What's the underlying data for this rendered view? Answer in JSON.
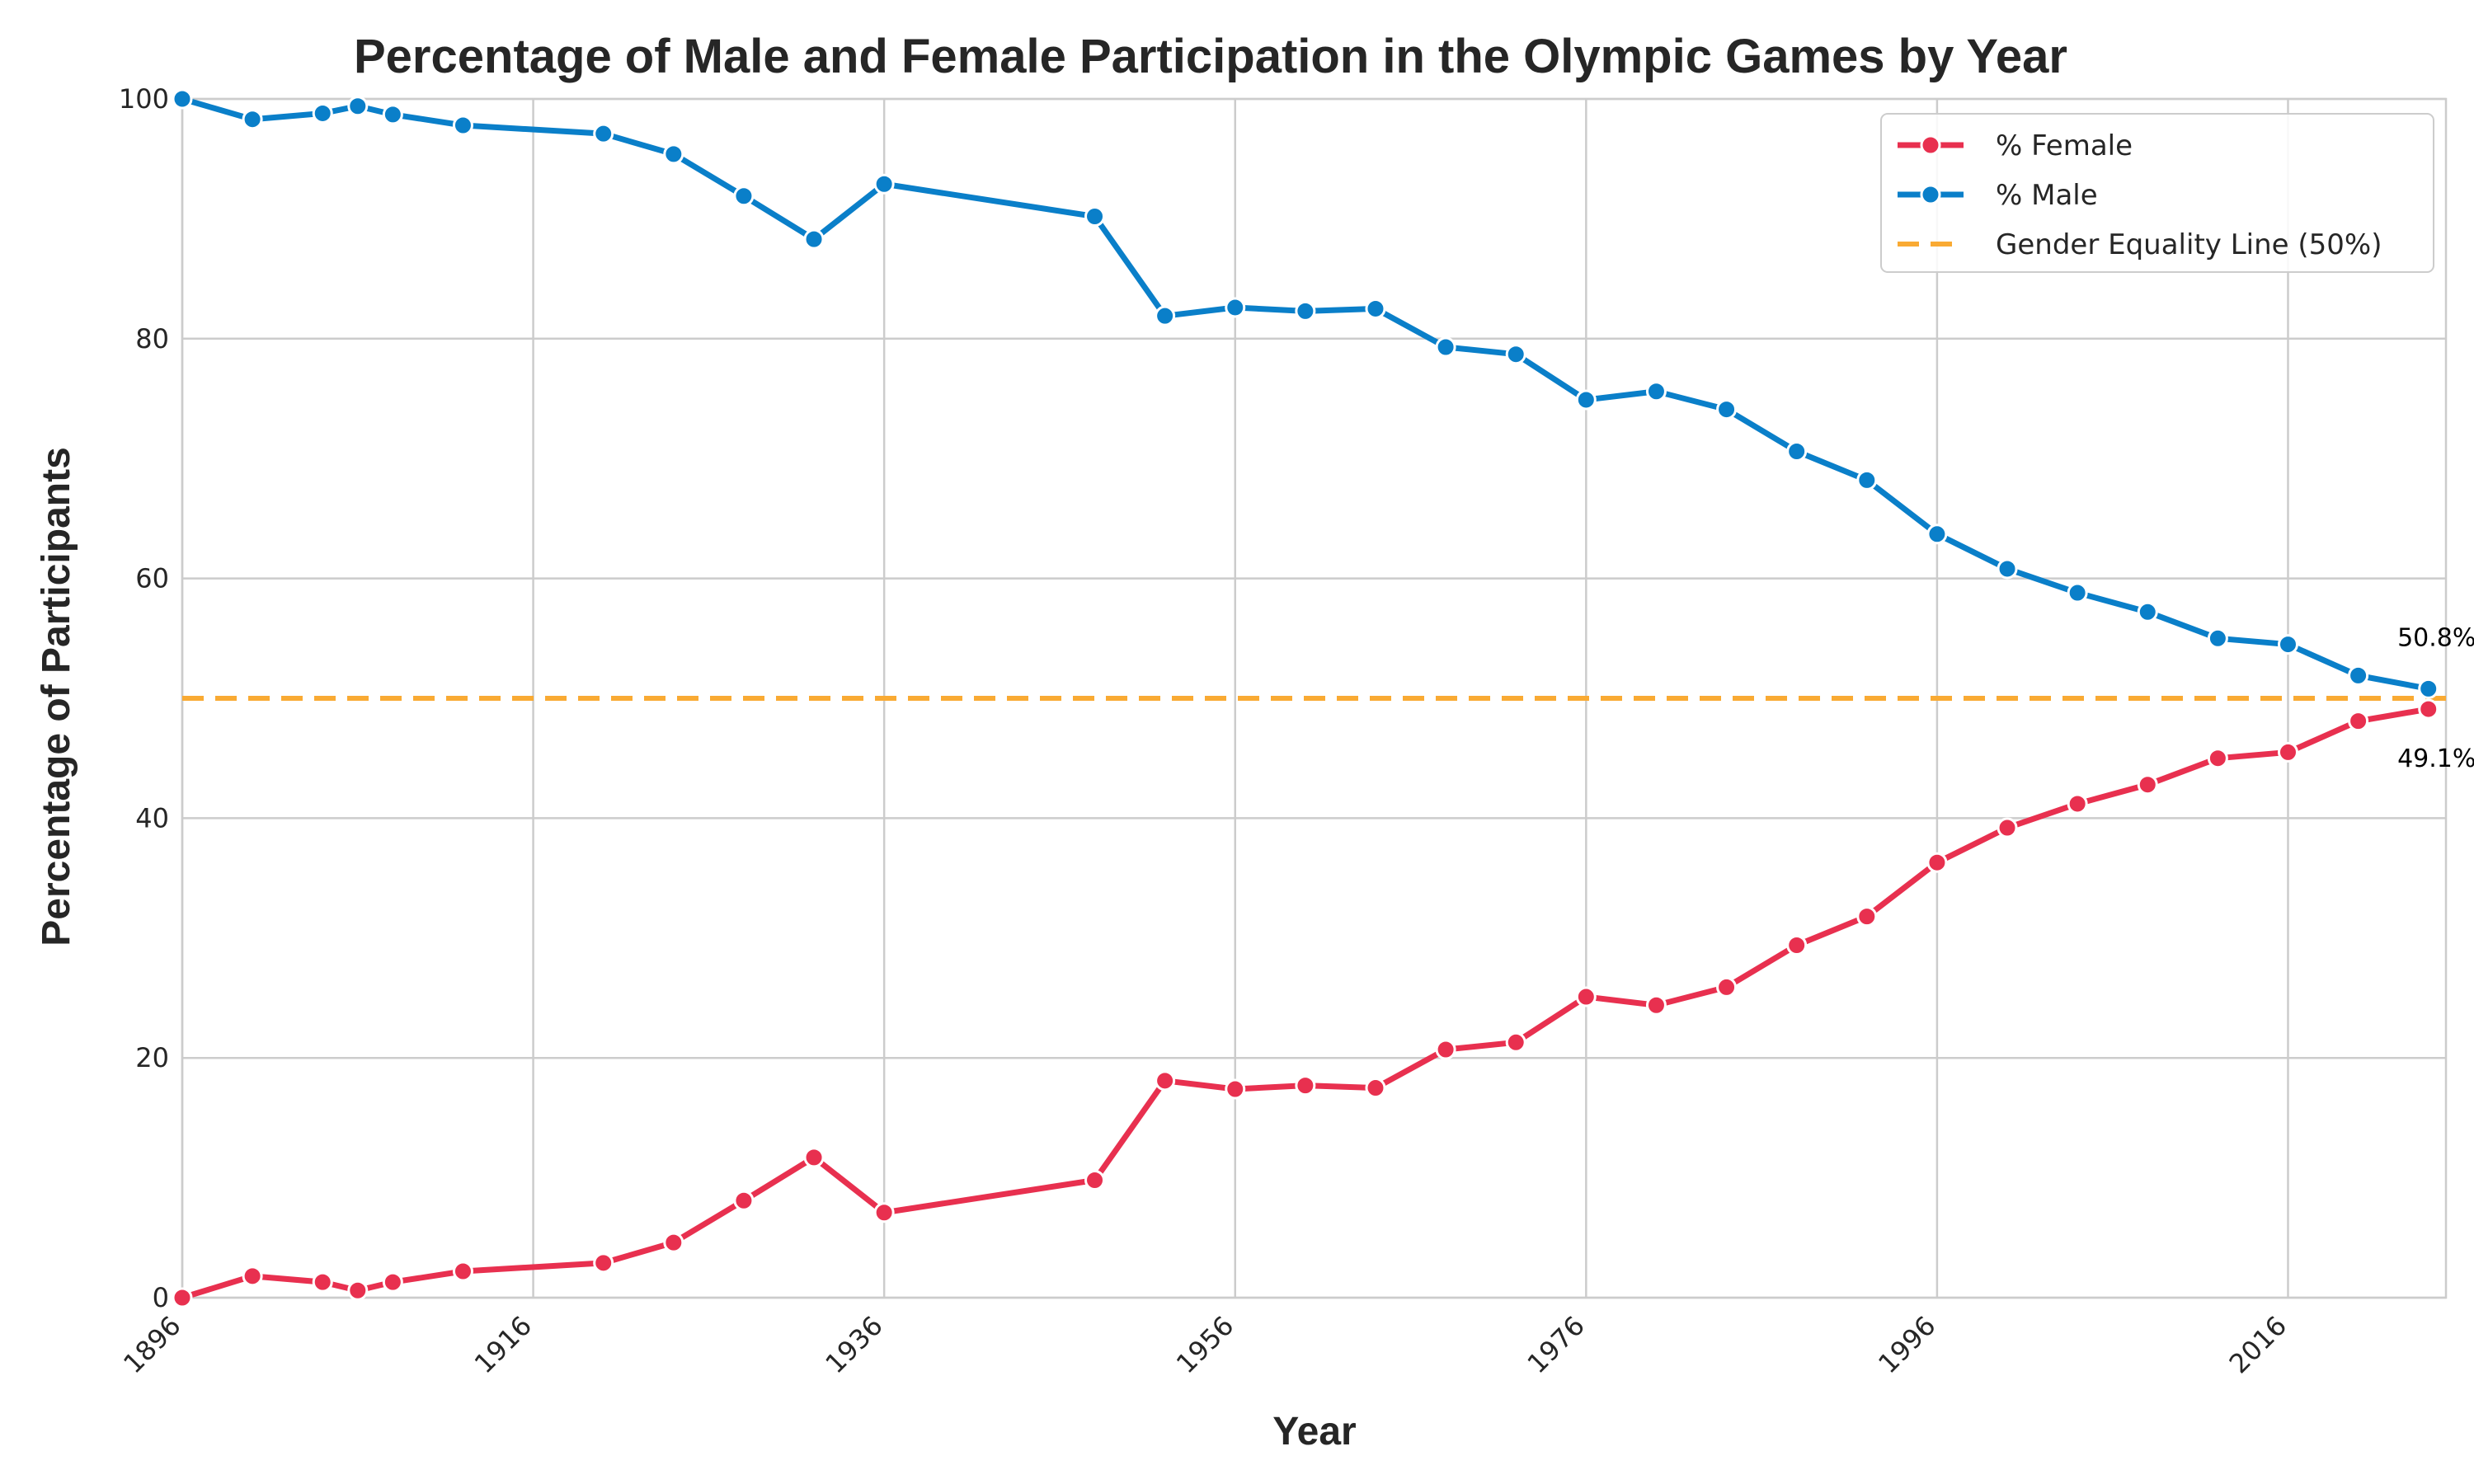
{
  "chart_data": {
    "type": "line",
    "title": "Percentage of Male and Female Participation in the Olympic Games by Year",
    "xlabel": "Year",
    "ylabel": "Percentage of Participants",
    "xlim": [
      1896,
      2025
    ],
    "ylim": [
      0,
      100
    ],
    "xticks": [
      1896,
      1916,
      1936,
      1956,
      1976,
      1996,
      2016
    ],
    "yticks": [
      0,
      20,
      40,
      60,
      80,
      100
    ],
    "grid": true,
    "legend_position": "top-right",
    "x": [
      1896,
      1900,
      1904,
      1906,
      1908,
      1912,
      1920,
      1924,
      1928,
      1932,
      1936,
      1948,
      1952,
      1956,
      1960,
      1964,
      1968,
      1972,
      1976,
      1980,
      1984,
      1988,
      1992,
      1996,
      2000,
      2004,
      2008,
      2012,
      2016,
      2020,
      2024
    ],
    "series": [
      {
        "name": "% Female",
        "color": "#e8304f",
        "values": [
          0.0,
          1.8,
          1.3,
          0.6,
          1.3,
          2.2,
          2.9,
          4.6,
          8.1,
          11.7,
          7.1,
          9.8,
          18.1,
          17.4,
          17.7,
          17.5,
          20.7,
          21.3,
          25.1,
          24.4,
          25.9,
          29.4,
          31.8,
          36.3,
          39.2,
          41.2,
          42.8,
          45.0,
          45.5,
          48.1,
          49.1
        ]
      },
      {
        "name": "% Male",
        "color": "#0a7fc9",
        "values": [
          100.0,
          98.3,
          98.8,
          99.4,
          98.7,
          97.8,
          97.1,
          95.4,
          91.9,
          88.3,
          92.9,
          90.2,
          81.9,
          82.6,
          82.3,
          82.5,
          79.3,
          78.7,
          74.9,
          75.6,
          74.1,
          70.6,
          68.2,
          63.7,
          60.8,
          58.8,
          57.2,
          55.0,
          54.5,
          51.9,
          50.8
        ]
      }
    ],
    "reference_line": {
      "name": "Gender Equality Line (50%)",
      "y": 50,
      "color": "#f9aa33",
      "style": "dashed"
    },
    "annotations": [
      {
        "text": "50.8%",
        "series": "% Male",
        "x": 2024,
        "y": 50.8,
        "position": "above"
      },
      {
        "text": "49.1%",
        "series": "% Female",
        "x": 2024,
        "y": 49.1,
        "position": "below"
      }
    ]
  }
}
